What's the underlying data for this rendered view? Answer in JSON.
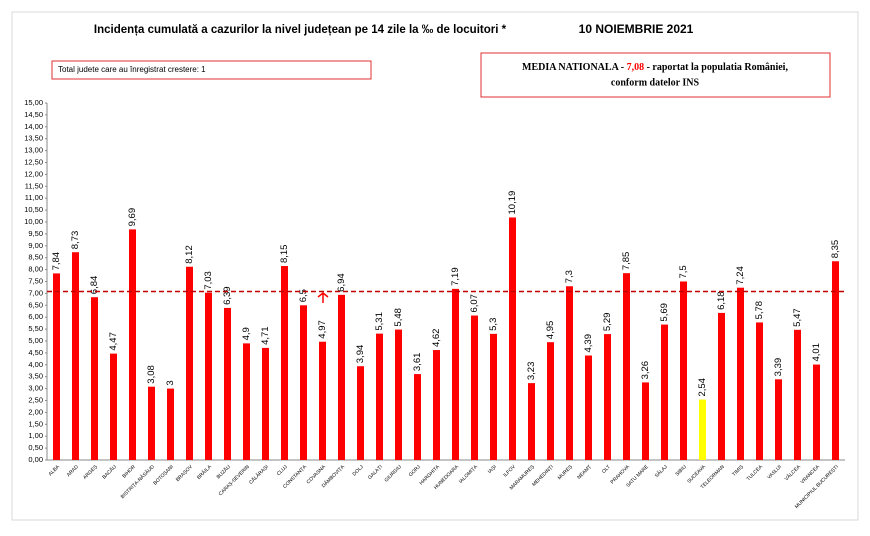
{
  "chart_data": {
    "type": "bar",
    "title": "Incidența cumulată a cazurilor la nivel județean pe 14 zile la ‰ de locuitori *",
    "date": "10 NOIEMBRIE 2021",
    "note": "Total judete care au înregistrat crestere: 1",
    "reference_line": {
      "value": 7.08,
      "color": "#c00000",
      "prefix": "MEDIA NATIONALA - ",
      "label": "7,08",
      "suffix": " -  raportat la populatia României,",
      "suffix2": "conform datelor INS"
    },
    "categories": [
      "ALBA",
      "ARAD",
      "ARGEȘ",
      "BACĂU",
      "BIHOR",
      "BISTRIȚA-NĂSĂUD",
      "BOTOȘANI",
      "BRAȘOV",
      "BRĂILA",
      "BUZĂU",
      "CARAȘ-SEVERIN",
      "CĂLĂRAȘI",
      "CLUJ",
      "CONSTANȚA",
      "COVASNA",
      "DÂMBOVIȚA",
      "DOLJ",
      "GALAȚI",
      "GIURGIU",
      "GORJ",
      "HARGHITA",
      "HUNEDOARA",
      "IALOMIȚA",
      "IAȘI",
      "ILFOV",
      "MARAMUREȘ",
      "MEHEDINȚI",
      "MUREȘ",
      "NEAMȚ",
      "OLT",
      "PRAHOVA",
      "SATU MARE",
      "SĂLAJ",
      "SIBIU",
      "SUCEAVA",
      "TELEORMAN",
      "TIMIȘ",
      "TULCEA",
      "VASLUI",
      "VÂLCEA",
      "VRANCEA",
      "MUNICIPIUL BUCUREȘTI"
    ],
    "values": [
      7.84,
      8.73,
      6.84,
      4.47,
      9.69,
      3.08,
      3,
      8.12,
      7.03,
      6.39,
      4.9,
      4.71,
      8.15,
      6.5,
      4.97,
      6.94,
      3.94,
      5.31,
      5.48,
      3.61,
      4.62,
      7.19,
      6.07,
      5.3,
      10.19,
      3.23,
      4.95,
      7.3,
      4.39,
      5.29,
      7.85,
      3.26,
      5.69,
      7.5,
      2.54,
      6.18,
      7.24,
      5.78,
      3.39,
      5.47,
      4.01,
      8.35
    ],
    "value_labels": [
      "7,84",
      "8,73",
      "6,84",
      "4,47",
      "9,69",
      "3,08",
      "3",
      "8,12",
      "7,03",
      "6,39",
      "4,9",
      "4,71",
      "8,15",
      "6,5",
      "4,97",
      "6,94",
      "3,94",
      "5,31",
      "5,48",
      "3,61",
      "4,62",
      "7,19",
      "6,07",
      "5,3",
      "10,19",
      "3,23",
      "4,95",
      "7,3",
      "4,39",
      "5,29",
      "7,85",
      "3,26",
      "5,69",
      "7,5",
      "2,54",
      "6,18",
      "7,24",
      "5,78",
      "3,39",
      "5,47",
      "4,01",
      "8,35"
    ],
    "colors": [
      "#ff0000",
      "#ff0000",
      "#ff0000",
      "#ff0000",
      "#ff0000",
      "#ff0000",
      "#ff0000",
      "#ff0000",
      "#ff0000",
      "#ff0000",
      "#ff0000",
      "#ff0000",
      "#ff0000",
      "#ff0000",
      "#ff0000",
      "#ff0000",
      "#ff0000",
      "#ff0000",
      "#ff0000",
      "#ff0000",
      "#ff0000",
      "#ff0000",
      "#ff0000",
      "#ff0000",
      "#ff0000",
      "#ff0000",
      "#ff0000",
      "#ff0000",
      "#ff0000",
      "#ff0000",
      "#ff0000",
      "#ff0000",
      "#ff0000",
      "#ff0000",
      "#ffff00",
      "#ff0000",
      "#ff0000",
      "#ff0000",
      "#ff0000",
      "#ff0000",
      "#ff0000",
      "#ff0000"
    ],
    "label_colors": [
      "#000000",
      "#000000",
      "#000000",
      "#000000",
      "#000000",
      "#000000",
      "#000000",
      "#000000",
      "#000000",
      "#000000",
      "#000000",
      "#000000",
      "#000000",
      "#000000",
      "#ff0000",
      "#000000",
      "#000000",
      "#000000",
      "#000000",
      "#000000",
      "#000000",
      "#000000",
      "#000000",
      "#000000",
      "#000000",
      "#000000",
      "#000000",
      "#000000",
      "#000000",
      "#000000",
      "#000000",
      "#000000",
      "#000000",
      "#000000",
      "#000000",
      "#000000",
      "#000000",
      "#000000",
      "#000000",
      "#000000",
      "#000000",
      "#000000"
    ],
    "ylim": [
      0,
      15
    ],
    "yticks": [
      {
        "value": 0,
        "label": "0,00"
      },
      {
        "value": 0.5,
        "label": "0,50"
      },
      {
        "value": 1,
        "label": "1,00"
      },
      {
        "value": 1.5,
        "label": "1,50"
      },
      {
        "value": 2,
        "label": "2,00"
      },
      {
        "value": 2.5,
        "label": "2,50"
      },
      {
        "value": 3,
        "label": "3,00"
      },
      {
        "value": 3.5,
        "label": "3,50"
      },
      {
        "value": 4,
        "label": "4,00"
      },
      {
        "value": 4.5,
        "label": "4,50"
      },
      {
        "value": 5,
        "label": "5,00"
      },
      {
        "value": 5.5,
        "label": "5,50"
      },
      {
        "value": 6,
        "label": "6,00"
      },
      {
        "value": 6.5,
        "label": "6,50"
      },
      {
        "value": 7,
        "label": "7,00"
      },
      {
        "value": 7.5,
        "label": "7,50"
      },
      {
        "value": 8,
        "label": "8,00"
      },
      {
        "value": 8.5,
        "label": "8,50"
      },
      {
        "value": 9,
        "label": "9,00"
      },
      {
        "value": 9.5,
        "label": "9,50"
      },
      {
        "value": 10,
        "label": "10,00"
      },
      {
        "value": 10.5,
        "label": "10,50"
      },
      {
        "value": 11,
        "label": "11,00"
      },
      {
        "value": 11.5,
        "label": "11,50"
      },
      {
        "value": 12,
        "label": "12,00"
      },
      {
        "value": 12.5,
        "label": "12,50"
      },
      {
        "value": 13,
        "label": "13,00"
      },
      {
        "value": 13.5,
        "label": "13,50"
      },
      {
        "value": 14,
        "label": "14,00"
      },
      {
        "value": 14.5,
        "label": "14,50"
      },
      {
        "value": 15,
        "label": "15,00"
      }
    ],
    "grid": false
  }
}
